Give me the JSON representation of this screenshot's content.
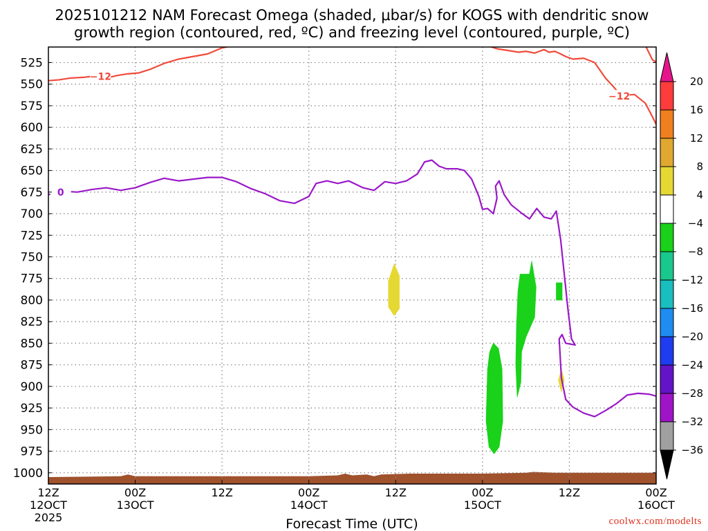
{
  "chart_data": {
    "type": "heatmap",
    "title_lines": [
      "2025101212 NAM Forecast Omega (shaded, μbar/s) for KOGS with dendritic snow",
      "growth region (contoured, red, ºC) and freezing level (contoured, purple, ºC)"
    ],
    "xlabel": "Forecast Time (UTC)",
    "credit": "coolwx.com/modelts",
    "x_hours_range": [
      0,
      84
    ],
    "x_ticks": [
      {
        "hour": 0,
        "lines": [
          "12Z",
          "12OCT",
          "2025"
        ]
      },
      {
        "hour": 12,
        "lines": [
          "00Z",
          "13OCT"
        ]
      },
      {
        "hour": 24,
        "lines": [
          "12Z"
        ]
      },
      {
        "hour": 36,
        "lines": [
          "00Z",
          "14OCT"
        ]
      },
      {
        "hour": 48,
        "lines": [
          "12Z"
        ]
      },
      {
        "hour": 60,
        "lines": [
          "00Z",
          "15OCT"
        ]
      },
      {
        "hour": 72,
        "lines": [
          "12Z"
        ]
      },
      {
        "hour": 84,
        "lines": [
          "00Z",
          "16OCT"
        ]
      }
    ],
    "y_ticks": [
      525,
      550,
      575,
      600,
      625,
      650,
      675,
      700,
      725,
      750,
      775,
      800,
      825,
      850,
      875,
      900,
      925,
      950,
      975,
      1000
    ],
    "y_range_mb": [
      507,
      1013
    ],
    "colorbar": {
      "labels": [
        "20",
        "16",
        "12",
        "8",
        "4",
        "−4",
        "−8",
        "−12",
        "−16",
        "−20",
        "−24",
        "−28",
        "−32",
        "−36"
      ],
      "colors": [
        "#ff3c3c",
        "#f0801e",
        "#e0a830",
        "#e6d832",
        "#ffffff",
        "#19d219",
        "#19c88c",
        "#19bebe",
        "#1e8cf0",
        "#1e3cf0",
        "#6414c8",
        "#a014c8",
        "#a0a0a0"
      ],
      "top_arrow_color": "#e6148c",
      "bottom_arrow_color": "#000000"
    },
    "series": [
      {
        "name": "dendritic snow growth region -12°C (upper segment)",
        "label": "−12",
        "color": "#f04a3a",
        "label_at": [
          7.2,
          541
        ],
        "points": [
          [
            0,
            546
          ],
          [
            1.5,
            545
          ],
          [
            3,
            543
          ],
          [
            5,
            542
          ],
          [
            7,
            540
          ],
          [
            8.5,
            542
          ],
          [
            9.5,
            540
          ],
          [
            11,
            538
          ],
          [
            12.5,
            537
          ],
          [
            14,
            533
          ],
          [
            16,
            526
          ],
          [
            18,
            521
          ],
          [
            20,
            518
          ],
          [
            22,
            515
          ],
          [
            24,
            508
          ],
          [
            25.2,
            506
          ]
        ]
      },
      {
        "name": "dendritic snow growth region -12°C (right segment)",
        "label": "−12",
        "color": "#f04a3a",
        "label_at": [
          78.9,
          564
        ],
        "points": [
          [
            60.5,
            505
          ],
          [
            62,
            509
          ],
          [
            63.5,
            511
          ],
          [
            65,
            513
          ],
          [
            66,
            512
          ],
          [
            67.2,
            514
          ],
          [
            68.5,
            510
          ],
          [
            69.2,
            513
          ],
          [
            70,
            512
          ],
          [
            70.8,
            515
          ],
          [
            71.5,
            518
          ],
          [
            72.5,
            521
          ],
          [
            74,
            520
          ],
          [
            75.5,
            525
          ],
          [
            77,
            543
          ],
          [
            78,
            552
          ],
          [
            78.5,
            557
          ],
          [
            79.5,
            563
          ],
          [
            81,
            562
          ],
          [
            82.5,
            572
          ],
          [
            83.5,
            588
          ],
          [
            84.8,
            610
          ],
          [
            85.8,
            622
          ]
        ]
      },
      {
        "name": "dendritic snow growth region -12°C (top-right corner)",
        "label": "",
        "color": "#f04a3a",
        "points": [
          [
            82.5,
            505
          ],
          [
            83.5,
            522
          ],
          [
            85.8,
            532
          ]
        ]
      },
      {
        "name": "freezing level 0°C",
        "label": "0",
        "color": "#9a18c8",
        "label_at": [
          1.7,
          675
        ],
        "points": [
          [
            0,
            678
          ],
          [
            2,
            674
          ],
          [
            4,
            675
          ],
          [
            6,
            672
          ],
          [
            8,
            670
          ],
          [
            10,
            673
          ],
          [
            12,
            670
          ],
          [
            14,
            664
          ],
          [
            16,
            659
          ],
          [
            18,
            662
          ],
          [
            20,
            660
          ],
          [
            22,
            658
          ],
          [
            24,
            658
          ],
          [
            26,
            663
          ],
          [
            28,
            671
          ],
          [
            30,
            677
          ],
          [
            32,
            685
          ],
          [
            34,
            688
          ],
          [
            36,
            680
          ],
          [
            37,
            665
          ],
          [
            38.5,
            662
          ],
          [
            40,
            665
          ],
          [
            41.5,
            662
          ],
          [
            43.5,
            670
          ],
          [
            45,
            673
          ],
          [
            46.5,
            663
          ],
          [
            48,
            665
          ],
          [
            49.5,
            662
          ],
          [
            51,
            654
          ],
          [
            52,
            640
          ],
          [
            53,
            638
          ],
          [
            54,
            645
          ],
          [
            55,
            648
          ],
          [
            56.5,
            648
          ],
          [
            57.5,
            650
          ],
          [
            58.5,
            660
          ],
          [
            59.5,
            680
          ],
          [
            60,
            695
          ],
          [
            60.7,
            694
          ],
          [
            61.5,
            700
          ],
          [
            62,
            682
          ],
          [
            61.8,
            668
          ],
          [
            62.3,
            662
          ],
          [
            63,
            678
          ],
          [
            64,
            690
          ],
          [
            65.5,
            700
          ],
          [
            66.5,
            706
          ],
          [
            67.5,
            694
          ],
          [
            68.5,
            704
          ],
          [
            69.5,
            706
          ],
          [
            70.2,
            697
          ],
          [
            70.8,
            730
          ],
          [
            71.3,
            770
          ],
          [
            71.8,
            810
          ],
          [
            72.3,
            845
          ],
          [
            72.8,
            852
          ],
          [
            71.5,
            850
          ],
          [
            71,
            840
          ],
          [
            70.6,
            845
          ],
          [
            70.9,
            890
          ],
          [
            71.5,
            915
          ],
          [
            72.5,
            924
          ],
          [
            74,
            931
          ],
          [
            75.5,
            935
          ],
          [
            77,
            928
          ],
          [
            78.5,
            920
          ],
          [
            80,
            910
          ],
          [
            81.5,
            908
          ],
          [
            83,
            909
          ],
          [
            84.8,
            913
          ]
        ]
      }
    ],
    "shaded_regions": [
      {
        "category": "4 to 8",
        "color": "#e6d832",
        "points": [
          [
            47.8,
            758
          ],
          [
            48.5,
            772
          ],
          [
            48.5,
            810
          ],
          [
            47.8,
            818
          ],
          [
            47,
            808
          ],
          [
            47,
            778
          ]
        ]
      },
      {
        "category": "4 to 8",
        "color": "#e6d832",
        "points": [
          [
            70.9,
            880
          ],
          [
            71.3,
            893
          ],
          [
            70.9,
            906
          ],
          [
            70.5,
            893
          ]
        ]
      },
      {
        "category": "-4 to -8",
        "color": "#19d219",
        "points": [
          [
            61.5,
            850
          ],
          [
            62.2,
            856
          ],
          [
            62.7,
            880
          ],
          [
            62.8,
            940
          ],
          [
            62.3,
            970
          ],
          [
            61.6,
            978
          ],
          [
            60.9,
            970
          ],
          [
            60.5,
            940
          ],
          [
            60.7,
            880
          ],
          [
            61.0,
            860
          ]
        ]
      },
      {
        "category": "-4 to -8",
        "color": "#19d219",
        "points": [
          [
            65.2,
            770
          ],
          [
            66.5,
            770
          ],
          [
            66.8,
            755
          ],
          [
            67.4,
            785
          ],
          [
            67.2,
            820
          ],
          [
            66.0,
            843
          ],
          [
            65.4,
            860
          ],
          [
            65.3,
            895
          ],
          [
            64.8,
            912
          ],
          [
            64.6,
            875
          ],
          [
            64.7,
            830
          ],
          [
            64.9,
            790
          ]
        ]
      },
      {
        "category": "-4 to -8",
        "color": "#19d219",
        "points": [
          [
            70.2,
            780
          ],
          [
            71.0,
            780
          ],
          [
            71.0,
            800
          ],
          [
            70.2,
            800
          ]
        ]
      }
    ],
    "terrain": {
      "color": "#a0522d",
      "bottom_mb": 1013,
      "top_mb": [
        [
          0,
          1005
        ],
        [
          10,
          1004
        ],
        [
          11,
          1002
        ],
        [
          12,
          1004
        ],
        [
          36,
          1004
        ],
        [
          40,
          1003
        ],
        [
          41,
          1001
        ],
        [
          42,
          1003
        ],
        [
          44,
          1002
        ],
        [
          45,
          1004
        ],
        [
          46,
          1002
        ],
        [
          50,
          1001
        ],
        [
          60,
          1001
        ],
        [
          66,
          1000
        ],
        [
          67,
          999
        ],
        [
          70,
          1000
        ],
        [
          84,
          1000
        ]
      ]
    }
  }
}
